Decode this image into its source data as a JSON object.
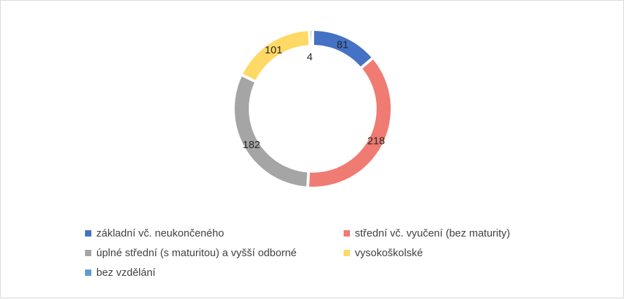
{
  "chart_data": {
    "type": "pie",
    "variant": "doughnut",
    "title": "",
    "categories": [
      "základní vč. neukončeného",
      "střední vč. vyučení (bez maturity)",
      "úplné střední (s maturitou) a vyšší odborné",
      "vysokoškolské",
      "bez vzdělání"
    ],
    "values": [
      81,
      218,
      182,
      101,
      4
    ],
    "colors": [
      "#4472c4",
      "#f07b72",
      "#a5a5a5",
      "#ffd966",
      "#5b9bd5"
    ],
    "data_labels": [
      "81",
      "218",
      "182",
      "101",
      "4"
    ],
    "legend_position": "bottom"
  }
}
